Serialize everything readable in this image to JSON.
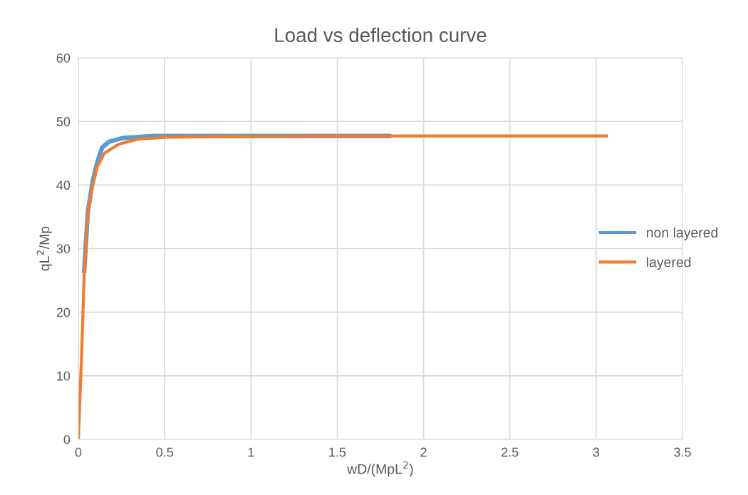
{
  "chart_data": {
    "type": "line",
    "title": "Load vs deflection curve",
    "xlabel": "wD/(MpL$^{2}$)",
    "ylabel": "qL$^{2}$/Mp",
    "xlim": [
      0,
      3.5
    ],
    "xticks": [
      0,
      0.5,
      1,
      1.5,
      2,
      2.5,
      3,
      3.5
    ],
    "ylim": [
      0,
      60
    ],
    "yticks": [
      0,
      10,
      20,
      30,
      40,
      50,
      60
    ],
    "grid": true,
    "legend": "right",
    "marker": "none",
    "line_style": "solid",
    "series": [
      {
        "name": "non layered",
        "color": "#5b9bd5",
        "x": [
          0.034,
          0.055,
          0.083,
          0.11,
          0.138,
          0.178,
          0.26,
          0.44,
          0.8,
          1.8
        ],
        "values": [
          26.5,
          35.8,
          40.6,
          43.6,
          45.9,
          46.8,
          47.4,
          47.7,
          47.7,
          47.7
        ]
      },
      {
        "name": "layered",
        "color": "#ed7d31",
        "x": [
          0,
          0.021,
          0.034,
          0.055,
          0.083,
          0.11,
          0.151,
          0.234,
          0.343,
          0.51,
          0.8,
          1.5,
          3.06
        ],
        "values": [
          0,
          14.9,
          26.1,
          35.4,
          39.9,
          42.9,
          45.0,
          46.4,
          47.2,
          47.5,
          47.6,
          47.7,
          47.7
        ]
      }
    ]
  }
}
